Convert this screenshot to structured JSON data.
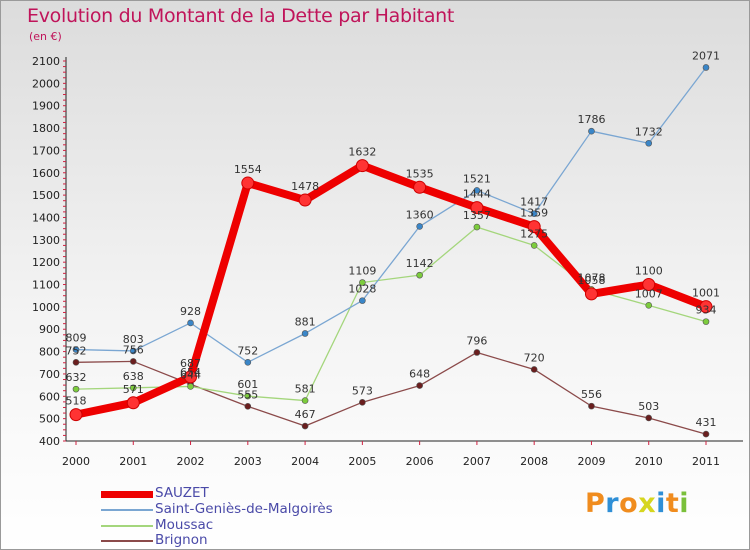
{
  "title": "Evolution du Montant de la Dette par Habitant",
  "subtitle": "(en €)",
  "logo": "Proxiti",
  "chart_data": {
    "type": "line",
    "title": "Evolution du Montant de la Dette par Habitant",
    "subtitle": "(en €)",
    "xlabel": "",
    "ylabel": "",
    "x": [
      2000,
      2001,
      2002,
      2003,
      2004,
      2005,
      2006,
      2007,
      2008,
      2009,
      2010,
      2011
    ],
    "ylim": [
      400,
      2100
    ],
    "yticks": [
      400,
      500,
      600,
      700,
      800,
      900,
      1000,
      1100,
      1200,
      1300,
      1400,
      1500,
      1600,
      1700,
      1800,
      1900,
      2000,
      2100
    ],
    "grid": false,
    "legend_position": "bottom-left",
    "series": [
      {
        "name": "SAUZET",
        "color": "#ee0000",
        "marker": "#ff3333",
        "values": [
          518,
          571,
          687,
          1554,
          1478,
          1632,
          1535,
          1444,
          1359,
          1058,
          1100,
          1001
        ]
      },
      {
        "name": "Saint-Geniès-de-Malgoirès",
        "color": "#7aa6d2",
        "marker": "#3a86c8",
        "values": [
          809,
          803,
          928,
          752,
          881,
          1028,
          1360,
          1521,
          1417,
          1786,
          1732,
          2071
        ]
      },
      {
        "name": "Moussac",
        "color": "#a4d67c",
        "marker": "#7ccc3c",
        "values": [
          632,
          638,
          644,
          601,
          581,
          1109,
          1142,
          1357,
          1275,
          1078,
          1007,
          934
        ]
      },
      {
        "name": "Brignon",
        "color": "#8b4a4a",
        "marker": "#6a1e1e",
        "values": [
          752,
          756,
          654,
          555,
          467,
          573,
          648,
          796,
          720,
          556,
          503,
          431
        ]
      }
    ]
  }
}
